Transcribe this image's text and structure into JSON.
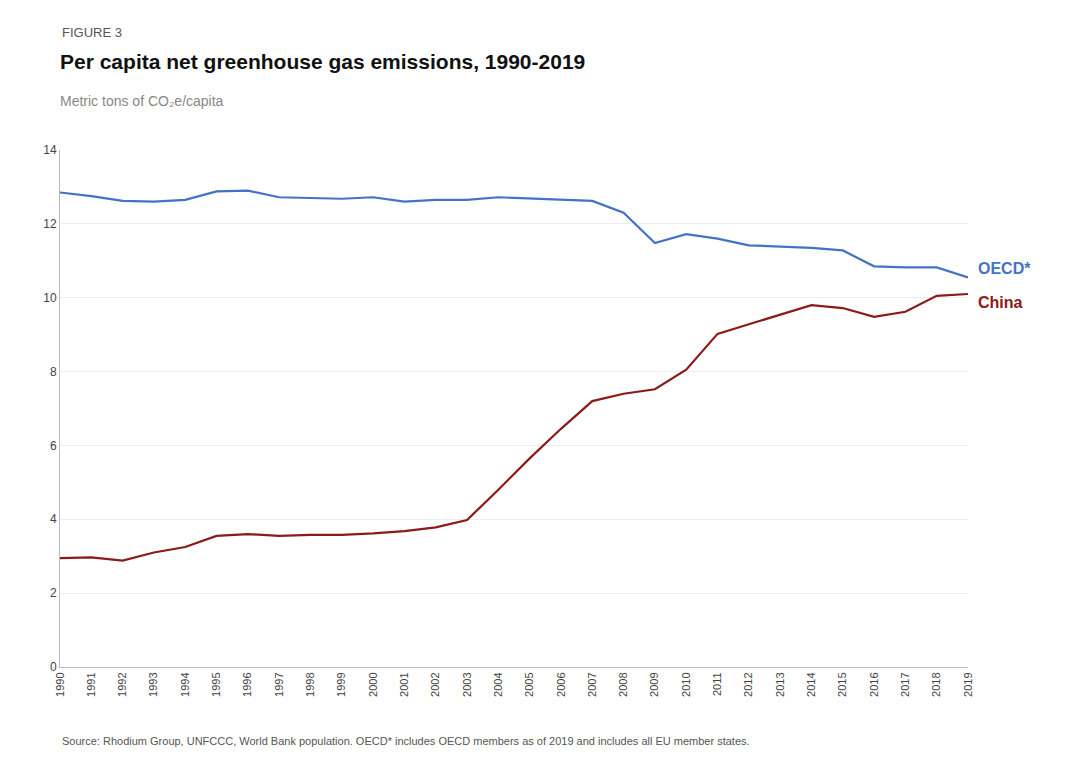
{
  "chart_data": {
    "type": "line",
    "title": "Per capita net greenhouse gas emissions, 1990-2019",
    "subtitle": "Metric tons of CO₂e/capita",
    "annotations": [
      "FIGURE 3",
      "Source: Rhodium Group, UNFCCC, World Bank population. OECD* includes OECD members as of 2019 and includes all EU member states."
    ],
    "x": [
      1990,
      1991,
      1992,
      1993,
      1994,
      1995,
      1996,
      1997,
      1998,
      1999,
      2000,
      2001,
      2002,
      2003,
      2004,
      2005,
      2006,
      2007,
      2008,
      2009,
      2010,
      2011,
      2012,
      2013,
      2014,
      2015,
      2016,
      2017,
      2018,
      2019
    ],
    "series": [
      {
        "name": "OECD*",
        "color": "#4472C4",
        "values": [
          12.85,
          12.75,
          12.62,
          12.6,
          12.65,
          12.88,
          12.9,
          12.72,
          12.7,
          12.68,
          12.72,
          12.6,
          12.65,
          12.65,
          12.72,
          12.68,
          12.65,
          12.62,
          12.3,
          11.48,
          11.72,
          11.6,
          11.42,
          11.38,
          11.35,
          11.28,
          10.85,
          10.82,
          10.82,
          10.55
        ]
      },
      {
        "name": "China",
        "color": "#8B1A1A",
        "values": [
          2.95,
          2.97,
          2.88,
          3.1,
          3.25,
          3.55,
          3.6,
          3.55,
          3.58,
          3.58,
          3.62,
          3.68,
          3.78,
          3.98,
          4.8,
          5.65,
          6.45,
          7.2,
          7.4,
          7.52,
          8.05,
          9.02,
          9.28,
          9.55,
          9.8,
          9.72,
          9.48,
          9.62,
          10.05,
          10.1
        ]
      }
    ],
    "xlim": [
      1990,
      2019
    ],
    "xticks": [
      1990,
      1991,
      1992,
      1993,
      1994,
      1995,
      1996,
      1997,
      1998,
      1999,
      2000,
      2001,
      2002,
      2003,
      2004,
      2005,
      2006,
      2007,
      2008,
      2009,
      2010,
      2011,
      2012,
      2013,
      2014,
      2015,
      2016,
      2017,
      2018,
      2019
    ],
    "ylim": [
      0,
      14
    ],
    "yticks": [
      0,
      2,
      4,
      6,
      8,
      10,
      12,
      14
    ],
    "grid": true
  }
}
